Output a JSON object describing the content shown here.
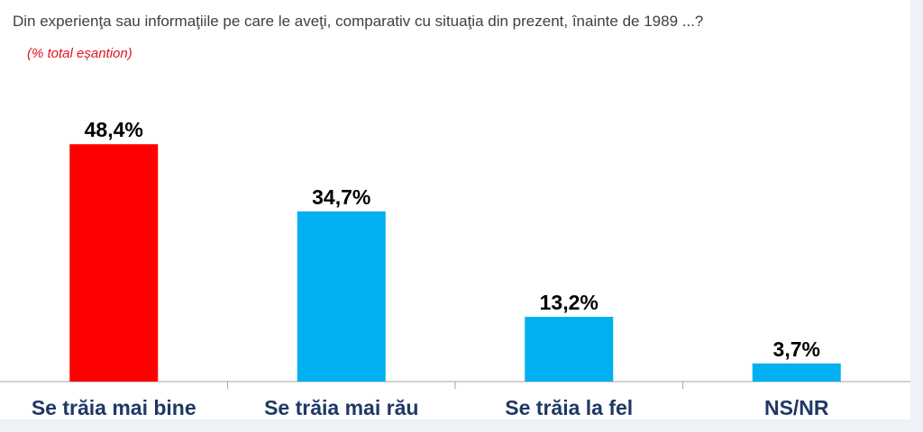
{
  "title": "Din experienţa sau informaţiile pe care le aveţi, comparativ cu situaţia din prezent, înainte de 1989 ...?",
  "subtitle": "(% total eșantion)",
  "colors": {
    "highlight": "#ff0000",
    "bar": "#00b0f0",
    "axis": "#a6a6a6",
    "label": "#1f3864",
    "value": "#000000"
  },
  "chart_data": {
    "type": "bar",
    "title": "Din experienţa sau informaţiile pe care le aveţi, comparativ cu situaţia din prezent, înainte de 1989 ...?",
    "subtitle": "(% total eșantion)",
    "categories": [
      "Se trăia mai bine",
      "Se trăia mai rău",
      "Se trăia la fel",
      "NS/NR"
    ],
    "values": [
      48.4,
      34.7,
      13.2,
      3.7
    ],
    "value_labels": [
      "48,4%",
      "34,7%",
      "13,2%",
      "3,7%"
    ],
    "highlight_index": 0,
    "ylim": [
      0,
      55
    ],
    "grid": false,
    "legend": "none"
  }
}
